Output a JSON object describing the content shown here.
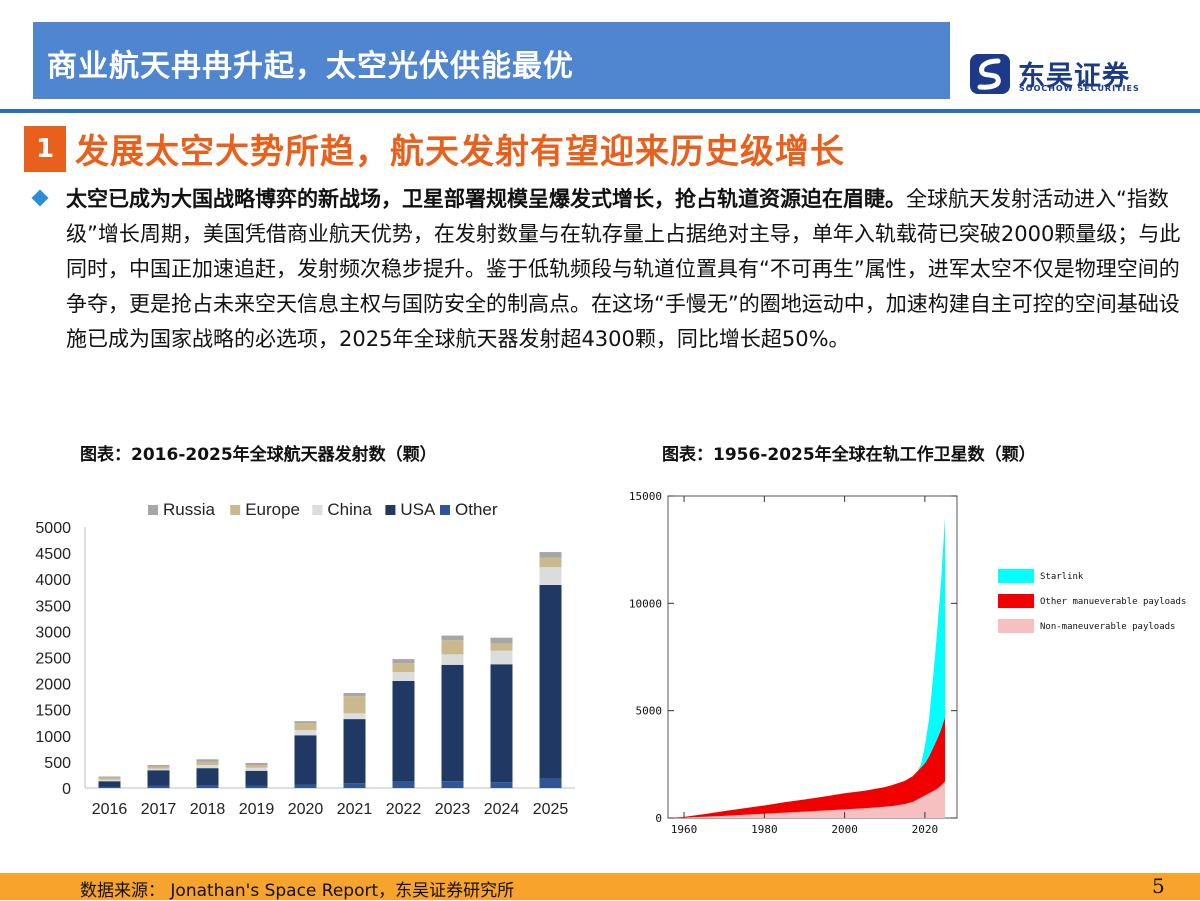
{
  "header": {
    "title": "商业航天冉冉升起，太空光伏供能最优",
    "logo_cn": "东吴证券",
    "logo_en": "SOOCHOW SECURITIES"
  },
  "section": {
    "number": "1",
    "title": "发展太空大势所趋，航天发射有望迎来历史级增长"
  },
  "paragraph": {
    "bold": "太空已成为大国战略博弈的新战场，卫星部署规模呈爆发式增长，抢占轨道资源迫在眉睫。",
    "body": "全球航天发射活动进入“指数级”增长周期，美国凭借商业航天优势，在发射数量与在轨存量上占据绝对主导，单年入轨载荷已突破2000颗量级；与此同时，中国正加速追赶，发射频次稳步提升。鉴于低轨频段与轨道位置具有“不可再生”属性，进军太空不仅是物理空间的争夺，更是抢占未来空天信息主权与国防安全的制高点。在这场“手慢无”的圈地运动中，加速构建自主可控的空间基础设施已成为国家战略的必选项，2025年全球航天器发射超4300颗，同比增长超50%。"
  },
  "captions": {
    "left": "图表：2016-2025年全球航天器发射数（颗）",
    "right": "图表：1956-2025年全球在轨工作卫星数（颗）"
  },
  "footer": {
    "source": "数据来源： Jonathan's Space Report，东吴证券研究所",
    "page": "5"
  },
  "chart_data": [
    {
      "type": "bar",
      "stacked": true,
      "title": "2016-2025年全球航天器发射数（颗）",
      "categories": [
        "2016",
        "2017",
        "2018",
        "2019",
        "2020",
        "2021",
        "2022",
        "2023",
        "2024",
        "2025"
      ],
      "series": [
        {
          "name": "Other",
          "color": "#2f5597",
          "values": [
            20,
            40,
            50,
            40,
            60,
            90,
            120,
            130,
            110,
            180
          ]
        },
        {
          "name": "USA",
          "color": "#1f3864",
          "values": [
            110,
            300,
            330,
            290,
            950,
            1230,
            1930,
            2230,
            2260,
            3710
          ]
        },
        {
          "name": "China",
          "color": "#dcdcdc",
          "values": [
            30,
            30,
            60,
            60,
            100,
            110,
            170,
            200,
            260,
            340
          ]
        },
        {
          "name": "Europe",
          "color": "#c9b98c",
          "values": [
            40,
            40,
            60,
            50,
            130,
            330,
            170,
            270,
            140,
            180
          ]
        },
        {
          "name": "Russia",
          "color": "#a6a6a6",
          "values": [
            20,
            30,
            50,
            40,
            40,
            60,
            80,
            90,
            110,
            110
          ]
        }
      ],
      "legend_order": [
        "Russia",
        "Europe",
        "China",
        "USA",
        "Other"
      ],
      "yticks": [
        0,
        500,
        1000,
        1500,
        2000,
        2500,
        3000,
        3500,
        4000,
        4500,
        5000
      ],
      "ylim": [
        0,
        5000
      ],
      "legend_position": "top"
    },
    {
      "type": "area",
      "stacked": true,
      "title": "1956-2025年全球在轨工作卫星数（颗）",
      "x": [
        1956,
        1960,
        1965,
        1970,
        1975,
        1980,
        1985,
        1990,
        1995,
        2000,
        2005,
        2010,
        2012,
        2015,
        2017,
        2018,
        2019,
        2020,
        2021,
        2022,
        2023,
        2024,
        2025
      ],
      "series": [
        {
          "name": "Non-maneuverable payloads",
          "color": "#f7c0c0",
          "values": [
            0,
            20,
            60,
            100,
            150,
            200,
            250,
            300,
            350,
            400,
            450,
            520,
            560,
            650,
            750,
            850,
            950,
            1050,
            1150,
            1250,
            1350,
            1500,
            1700
          ]
        },
        {
          "name": "Other manueverable payloads",
          "color": "#f20000",
          "values": [
            0,
            30,
            120,
            220,
            300,
            380,
            480,
            560,
            650,
            750,
            820,
            920,
            980,
            1080,
            1200,
            1300,
            1400,
            1500,
            1700,
            2000,
            2300,
            2600,
            3000
          ]
        },
        {
          "name": "Starlink",
          "color": "#00ffff",
          "values": [
            0,
            0,
            0,
            0,
            0,
            0,
            0,
            0,
            0,
            0,
            0,
            0,
            0,
            0,
            0,
            0,
            120,
            800,
            1700,
            3200,
            4900,
            6800,
            9300
          ]
        }
      ],
      "legend_order": [
        "Starlink",
        "Other manueverable payloads",
        "Non-maneuverable payloads"
      ],
      "xticks": [
        1960,
        1980,
        2000,
        2020
      ],
      "yticks": [
        0,
        5000,
        10000,
        15000
      ],
      "ylim": [
        0,
        15000
      ],
      "xlim": [
        1956,
        2028
      ],
      "legend_position": "right"
    }
  ]
}
